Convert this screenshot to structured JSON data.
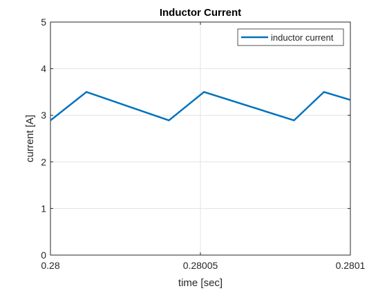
{
  "chart_data": {
    "type": "line",
    "title": "Inductor Current",
    "xlabel": "time [sec]",
    "ylabel": "current [A]",
    "xlim": [
      0.28,
      0.2801
    ],
    "ylim": [
      0,
      5
    ],
    "xticks": [
      0.28,
      0.28005,
      0.2801
    ],
    "xtick_labels": [
      "0.28",
      "0.28005",
      "0.2801"
    ],
    "yticks": [
      0,
      1,
      2,
      3,
      4,
      5
    ],
    "ytick_labels": [
      "0",
      "1",
      "2",
      "3",
      "4",
      "5"
    ],
    "grid": true,
    "legend_location": "top-right",
    "series": [
      {
        "name": "inductor current",
        "color": "#0072BD",
        "x": [
          0.28,
          0.280012,
          0.2800395,
          0.2800512,
          0.2800812,
          0.2800912,
          0.2801
        ],
        "y": [
          2.89,
          3.5,
          2.89,
          3.5,
          2.89,
          3.5,
          3.33
        ]
      }
    ]
  }
}
